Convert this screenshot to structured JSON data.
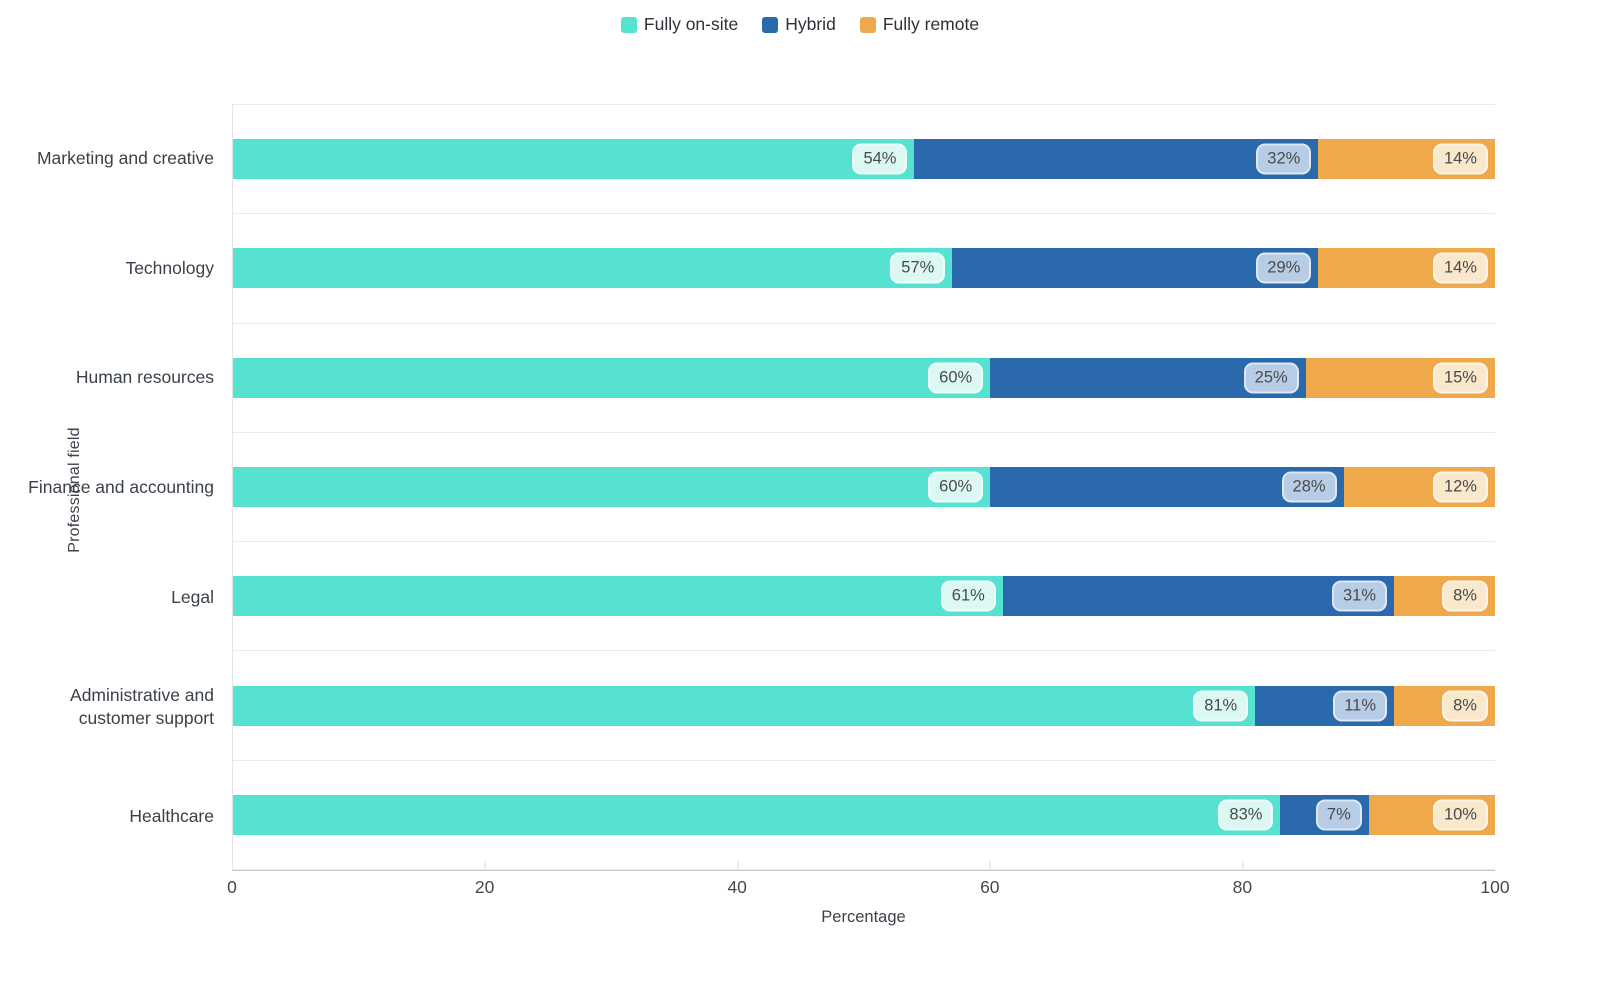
{
  "legend": {
    "position": "top-center"
  },
  "axes": {
    "xlabel": "Percentage",
    "ylabel": "Professional field"
  },
  "chart_data": {
    "type": "bar",
    "orientation": "horizontal",
    "stacked": true,
    "title": "",
    "xlabel": "Percentage",
    "ylabel": "Professional field",
    "xlim": [
      0,
      100
    ],
    "x_ticks": [
      0,
      20,
      40,
      60,
      80,
      100
    ],
    "x_ticks_with_marks": [
      20,
      40,
      60,
      80
    ],
    "grid": "horizontal-row-separators-only",
    "legend_position": "top-center",
    "value_suffix": "%",
    "categories": [
      "Marketing and creative",
      "Technology",
      "Human resources",
      "Finance and accounting",
      "Legal",
      "Administrative and customer support",
      "Healthcare"
    ],
    "series": [
      {
        "name": "Fully on-site",
        "color": "#55E2D0",
        "label_bg": "#DCF8F3",
        "values": [
          54,
          57,
          60,
          60,
          61,
          81,
          83
        ]
      },
      {
        "name": "Hybrid",
        "color": "#2A69AB",
        "label_bg": "#B7CDE6",
        "values": [
          32,
          29,
          25,
          28,
          31,
          11,
          7
        ]
      },
      {
        "name": "Fully remote",
        "color": "#EFA94B",
        "label_bg": "#F9E8CC",
        "values": [
          14,
          14,
          15,
          12,
          8,
          8,
          10
        ]
      }
    ],
    "colors": {
      "row_separator": "#ebebeb",
      "axis_line": "#c9c9c9",
      "pill_text": "#4a4a4a",
      "category_text": "#3b414b"
    }
  }
}
